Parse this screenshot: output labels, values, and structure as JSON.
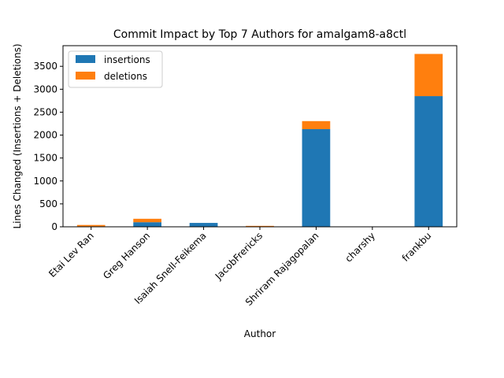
{
  "chart_data": {
    "type": "bar",
    "stacked": true,
    "title": "Commit Impact by Top 7 Authors for amalgam8-a8ctl",
    "xlabel": "Author",
    "ylabel": "Lines Changed (Insertions + Deletions)",
    "ylim": [
      0,
      3950
    ],
    "yticks": [
      0,
      500,
      1000,
      1500,
      2000,
      2500,
      3000,
      3500
    ],
    "grid": false,
    "legend_position": "top-left",
    "categories": [
      "Etai Lev Ran",
      "Greg Hanson",
      "Isaiah Snell-Feikema",
      "JacobFrericks",
      "Shriram Rajagopalan",
      "charshy",
      "frankbu"
    ],
    "series": [
      {
        "name": "insertions",
        "color": "#1f77b4",
        "values": [
          10,
          100,
          85,
          5,
          2130,
          0,
          2850
        ]
      },
      {
        "name": "deletions",
        "color": "#ff7f0e",
        "values": [
          30,
          75,
          0,
          15,
          175,
          0,
          920
        ]
      }
    ]
  }
}
